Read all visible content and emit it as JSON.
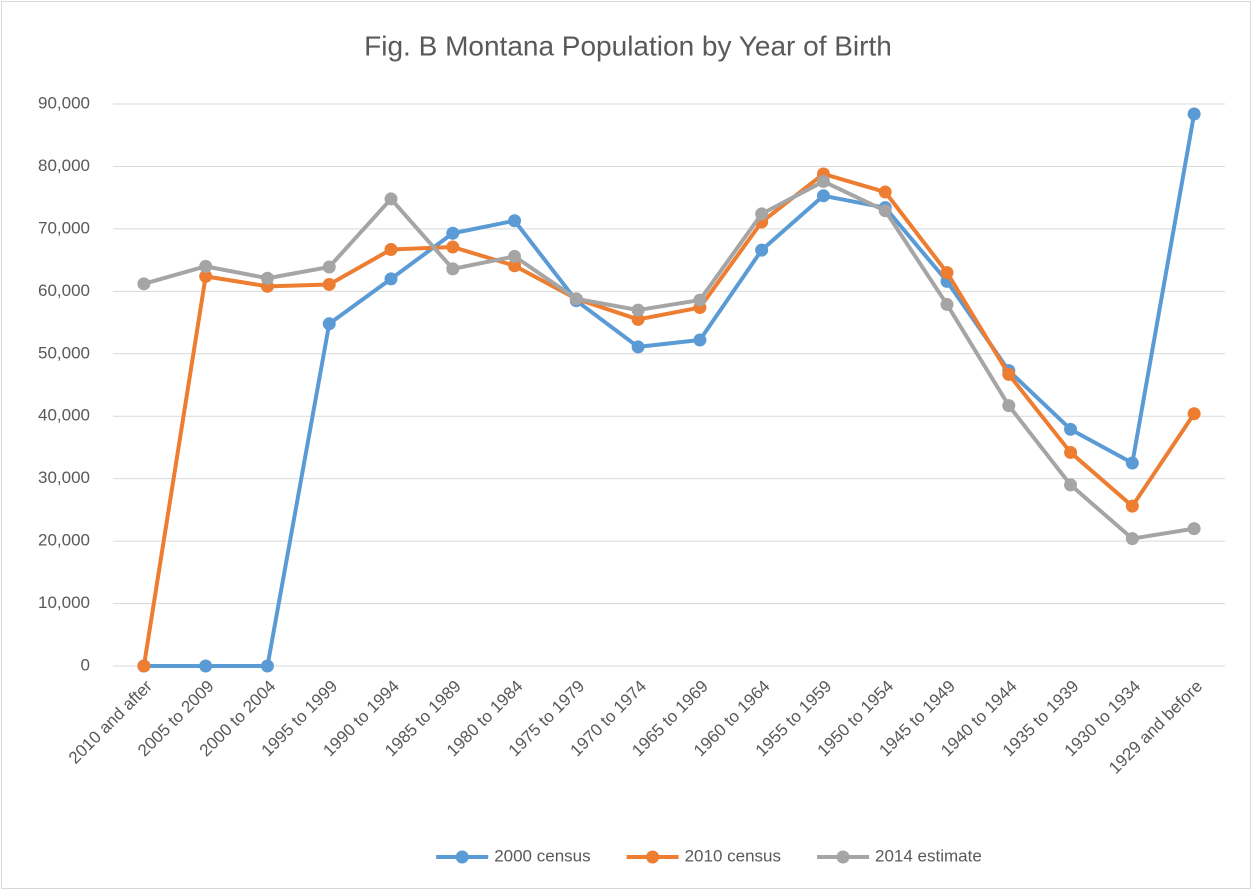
{
  "chart_data": {
    "type": "line",
    "title": "Fig. B Montana Population by Year of Birth",
    "categories": [
      "2010 and after",
      "2005 to 2009",
      "2000 to 2004",
      "1995 to 1999",
      "1990 to 1994",
      "1985 to 1989",
      "1980 to 1984",
      "1975 to 1979",
      "1970 to 1974",
      "1965 to 1969",
      "1960 to 1964",
      "1955 to 1959",
      "1950 to 1954",
      "1945 to 1949",
      "1940 to 1944",
      "1935 to 1939",
      "1930 to 1934",
      "1929 and before"
    ],
    "series": [
      {
        "name": "2000 census",
        "color": "#5b9bd5",
        "values": [
          0,
          0,
          0,
          54800,
          62000,
          69300,
          71300,
          58500,
          51100,
          52200,
          66600,
          75300,
          73400,
          61600,
          47300,
          37900,
          32500,
          88400
        ]
      },
      {
        "name": "2010 census",
        "color": "#ed7d31",
        "values": [
          0,
          62400,
          60800,
          61100,
          66700,
          67100,
          64100,
          58800,
          55500,
          57400,
          71100,
          78800,
          75900,
          63000,
          46700,
          34200,
          25600,
          40400
        ]
      },
      {
        "name": "2014 estimate",
        "color": "#a5a5a5",
        "values": [
          61200,
          64000,
          62100,
          63900,
          74800,
          63600,
          65600,
          58800,
          57000,
          58600,
          72400,
          77600,
          72900,
          57900,
          41700,
          29000,
          20400,
          22000
        ]
      }
    ],
    "ylim": [
      0,
      90000
    ],
    "yticks": [
      0,
      {
        "value": 10000,
        "label": "10,000"
      },
      {
        "value": 20000,
        "label": "20,000"
      },
      {
        "value": 30000,
        "label": "30,000"
      },
      {
        "value": 40000,
        "label": "40,000"
      },
      {
        "value": 50000,
        "label": "50,000"
      },
      {
        "value": 60000,
        "label": "60,000"
      },
      {
        "value": 70000,
        "label": "70,000"
      },
      {
        "value": 80000,
        "label": "80,000"
      },
      {
        "value": 90000,
        "label": "90,000"
      }
    ],
    "grid": true,
    "legend": "bottom"
  }
}
